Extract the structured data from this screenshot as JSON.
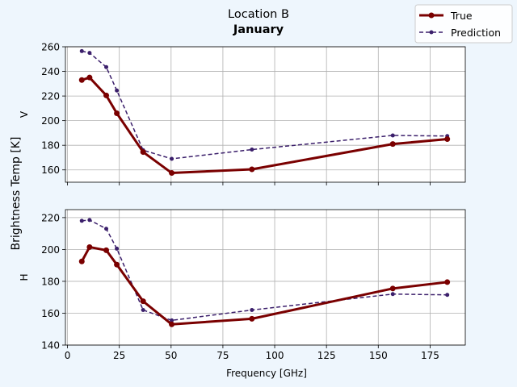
{
  "chart_data": {
    "type": "line",
    "title": "Location B",
    "subtitle": "January",
    "xlabel": "Frequency [GHz]",
    "ylabel": "Brightness Temp [K]",
    "legend": {
      "placement": "top-right",
      "entries": [
        "True",
        "Prediction"
      ]
    },
    "colors": {
      "true": "#7a0000",
      "prediction": "#3b1f6b",
      "grid": "#b0b0b0"
    },
    "grid": true,
    "xlim": [
      -1,
      192
    ],
    "xticks": [
      0,
      25,
      50,
      75,
      100,
      125,
      150,
      175
    ],
    "x": [
      6.9,
      10.65,
      18.7,
      23.8,
      36.5,
      50.3,
      89.0,
      157.0,
      183.3
    ],
    "panels": [
      {
        "ylabel": "V",
        "ylim": [
          150,
          260
        ],
        "yticks": [
          160,
          180,
          200,
          220,
          240,
          260
        ],
        "series": [
          {
            "name": "True",
            "values": [
              233,
              235,
              220.5,
              206,
              174.5,
              157.5,
              160.5,
              181,
              185
            ]
          },
          {
            "name": "Prediction",
            "values": [
              256.5,
              255,
              243.5,
              224.5,
              176,
              169,
              176.5,
              188,
              187.5
            ]
          }
        ]
      },
      {
        "ylabel": "H",
        "ylim": [
          140,
          225
        ],
        "yticks": [
          140,
          160,
          180,
          200,
          220
        ],
        "series": [
          {
            "name": "True",
            "values": [
              192.5,
              201.5,
              199.5,
              190.5,
              167.5,
              153,
              156.5,
              175.5,
              179.5
            ]
          },
          {
            "name": "Prediction",
            "values": [
              218,
              218.5,
              213,
              200.5,
              162,
              155.5,
              162,
              172,
              171.5
            ]
          }
        ]
      }
    ]
  }
}
